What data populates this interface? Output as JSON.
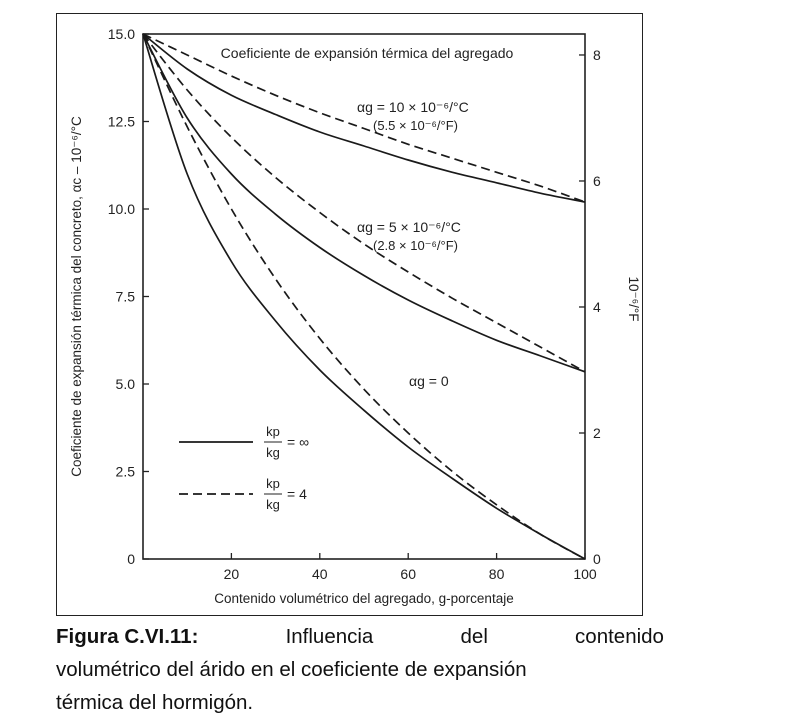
{
  "chart_data": {
    "type": "line",
    "title": "Coeficiente de expansión térmica del agregado",
    "xlabel": "Contenido volumétrico del agregado, g-porcentaje",
    "ylabel": "Coeficiente de expansión térmica del concreto, αc – 10⁻⁶/°C",
    "y2label": "10⁻⁶/°F",
    "xlim": [
      0,
      100
    ],
    "ylim": [
      0,
      15
    ],
    "y2lim": [
      0,
      8.333
    ],
    "xticks": [
      "20",
      "40",
      "60",
      "80",
      "100"
    ],
    "yticks": [
      "0",
      "2.5",
      "5.0",
      "7.5",
      "10.0",
      "12.5",
      "15.0"
    ],
    "y2ticks": [
      "0",
      "2",
      "4",
      "6",
      "8"
    ],
    "grid": false,
    "legend": {
      "position": "bottom-left",
      "entries": [
        {
          "style": "solid",
          "num": "kp",
          "den": "kg",
          "value": "= ∞"
        },
        {
          "style": "dashed",
          "num": "kp",
          "den": "kg",
          "value": "= 4"
        }
      ]
    },
    "annotations": [
      {
        "line1": "αg = 10 × 10⁻⁶/°C",
        "line2": "(5.5 × 10⁻⁶/°F)"
      },
      {
        "line1": "αg = 5 × 10⁻⁶/°C",
        "line2": "(2.8 × 10⁻⁶/°F)"
      },
      {
        "line1": "αg = 0"
      }
    ],
    "x": [
      0,
      10,
      20,
      30,
      40,
      50,
      60,
      70,
      80,
      90,
      100
    ],
    "series": [
      {
        "style": "solid",
        "group": "αg = 10",
        "values": [
          15.0,
          14.0,
          13.25,
          12.7,
          12.2,
          11.8,
          11.4,
          11.05,
          10.75,
          10.45,
          10.2
        ]
      },
      {
        "style": "dashed",
        "group": "αg = 10",
        "values": [
          15.0,
          14.4,
          13.8,
          13.25,
          12.75,
          12.3,
          11.85,
          11.45,
          11.05,
          10.65,
          10.2
        ]
      },
      {
        "style": "solid",
        "group": "αg = 5",
        "values": [
          15.0,
          12.6,
          11.0,
          9.85,
          8.9,
          8.1,
          7.4,
          6.8,
          6.25,
          5.8,
          5.35
        ]
      },
      {
        "style": "dashed",
        "group": "αg = 5",
        "values": [
          15.0,
          13.4,
          12.05,
          10.9,
          9.9,
          9.0,
          8.2,
          7.45,
          6.75,
          6.05,
          5.35
        ]
      },
      {
        "style": "solid",
        "group": "αg = 0",
        "values": [
          15.0,
          11.0,
          8.5,
          6.8,
          5.4,
          4.25,
          3.2,
          2.3,
          1.45,
          0.7,
          0.0
        ]
      },
      {
        "style": "dashed",
        "group": "αg = 0",
        "values": [
          15.0,
          12.35,
          10.0,
          8.0,
          6.3,
          4.85,
          3.6,
          2.5,
          1.55,
          0.7,
          0.0
        ]
      }
    ]
  },
  "caption": {
    "label": "Figura C.VI.11:",
    "word1": "Influencia",
    "word2": "del",
    "word3": "contenido",
    "line2": "volumétrico del árido en el coeficiente de expansión",
    "line3": "térmica del hormigón."
  }
}
